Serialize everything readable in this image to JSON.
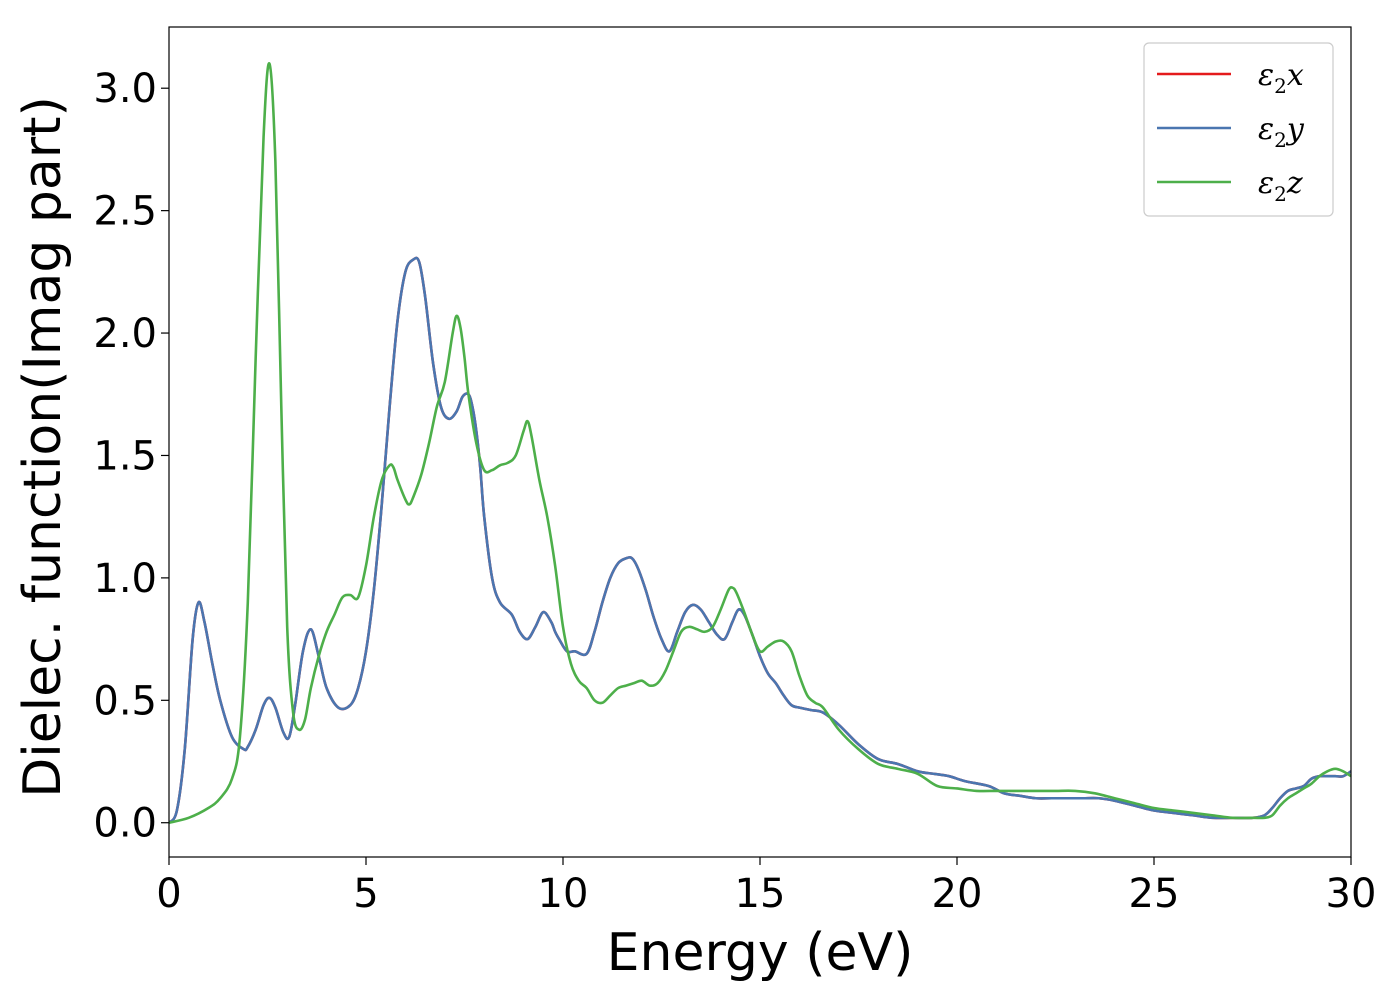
{
  "chart_data": {
    "type": "line",
    "xlabel": "Energy (eV)",
    "ylabel": "Dielec. function(Imag part)",
    "xlim": [
      0,
      30
    ],
    "ylim": [
      -0.14,
      3.25
    ],
    "xticks": [
      0,
      5,
      10,
      15,
      20,
      25,
      30
    ],
    "yticks": [
      0.0,
      0.5,
      1.0,
      1.5,
      2.0,
      2.5,
      3.0
    ],
    "xtick_labels": [
      "0",
      "5",
      "10",
      "15",
      "20",
      "25",
      "30"
    ],
    "ytick_labels": [
      "0.0",
      "0.5",
      "1.0",
      "1.5",
      "2.0",
      "2.5",
      "3.0"
    ],
    "grid": false,
    "legend_position": "top-right",
    "series": [
      {
        "name_symbol": "ε",
        "name_sub": "2",
        "name_var": "x",
        "color": "#e41a1c",
        "x": [
          0,
          0.2,
          0.4,
          0.6,
          0.75,
          0.9,
          1.1,
          1.3,
          1.6,
          1.9,
          2.0,
          2.2,
          2.4,
          2.55,
          2.7,
          2.9,
          3.05,
          3.2,
          3.4,
          3.6,
          3.8,
          4.0,
          4.3,
          4.6,
          4.8,
          5.0,
          5.2,
          5.4,
          5.6,
          5.8,
          6.0,
          6.2,
          6.35,
          6.5,
          6.7,
          6.9,
          7.1,
          7.3,
          7.45,
          7.6,
          7.7,
          7.8,
          7.9,
          8.0,
          8.2,
          8.4,
          8.7,
          8.9,
          9.1,
          9.3,
          9.5,
          9.7,
          9.8,
          9.9,
          10.1,
          10.3,
          10.6,
          10.8,
          11.0,
          11.2,
          11.4,
          11.6,
          11.75,
          11.9,
          12.1,
          12.3,
          12.5,
          12.7,
          12.9,
          13.1,
          13.3,
          13.5,
          13.7,
          13.9,
          14.1,
          14.3,
          14.45,
          14.6,
          14.8,
          15.0,
          15.2,
          15.4,
          15.6,
          15.8,
          16.0,
          16.3,
          16.6,
          17.0,
          17.5,
          18.0,
          18.5,
          19.0,
          19.4,
          19.8,
          20.2,
          20.8,
          21.2,
          21.6,
          22.0,
          22.4,
          22.8,
          23.2,
          23.6,
          24.0,
          24.5,
          25.0,
          25.5,
          26.0,
          26.5,
          27.0,
          27.5,
          27.8,
          28.0,
          28.2,
          28.4,
          28.6,
          28.8,
          29.0,
          29.2,
          29.4,
          29.6,
          29.8,
          30.0
        ],
        "y": [
          0,
          0.05,
          0.3,
          0.75,
          0.9,
          0.82,
          0.65,
          0.5,
          0.35,
          0.3,
          0.31,
          0.38,
          0.48,
          0.51,
          0.47,
          0.37,
          0.35,
          0.48,
          0.7,
          0.79,
          0.68,
          0.55,
          0.47,
          0.48,
          0.55,
          0.7,
          0.95,
          1.3,
          1.7,
          2.05,
          2.25,
          2.3,
          2.29,
          2.15,
          1.88,
          1.7,
          1.65,
          1.68,
          1.74,
          1.75,
          1.7,
          1.6,
          1.45,
          1.25,
          1.0,
          0.9,
          0.85,
          0.78,
          0.75,
          0.8,
          0.86,
          0.82,
          0.78,
          0.75,
          0.7,
          0.7,
          0.69,
          0.78,
          0.9,
          1.0,
          1.06,
          1.08,
          1.08,
          1.04,
          0.95,
          0.84,
          0.75,
          0.7,
          0.78,
          0.86,
          0.89,
          0.87,
          0.82,
          0.77,
          0.75,
          0.82,
          0.87,
          0.85,
          0.77,
          0.68,
          0.61,
          0.57,
          0.52,
          0.48,
          0.47,
          0.46,
          0.45,
          0.4,
          0.32,
          0.26,
          0.24,
          0.21,
          0.2,
          0.19,
          0.17,
          0.15,
          0.12,
          0.11,
          0.1,
          0.1,
          0.1,
          0.1,
          0.1,
          0.09,
          0.07,
          0.05,
          0.04,
          0.03,
          0.02,
          0.02,
          0.02,
          0.03,
          0.06,
          0.1,
          0.13,
          0.14,
          0.15,
          0.18,
          0.19,
          0.19,
          0.19,
          0.19,
          0.21
        ]
      },
      {
        "name_symbol": "ε",
        "name_sub": "2",
        "name_var": "y",
        "color": "#4a76b0",
        "x": [
          0,
          0.2,
          0.4,
          0.6,
          0.75,
          0.9,
          1.1,
          1.3,
          1.6,
          1.9,
          2.0,
          2.2,
          2.4,
          2.55,
          2.7,
          2.9,
          3.05,
          3.2,
          3.4,
          3.6,
          3.8,
          4.0,
          4.3,
          4.6,
          4.8,
          5.0,
          5.2,
          5.4,
          5.6,
          5.8,
          6.0,
          6.2,
          6.35,
          6.5,
          6.7,
          6.9,
          7.1,
          7.3,
          7.45,
          7.6,
          7.7,
          7.8,
          7.9,
          8.0,
          8.2,
          8.4,
          8.7,
          8.9,
          9.1,
          9.3,
          9.5,
          9.7,
          9.8,
          9.9,
          10.1,
          10.3,
          10.6,
          10.8,
          11.0,
          11.2,
          11.4,
          11.6,
          11.75,
          11.9,
          12.1,
          12.3,
          12.5,
          12.7,
          12.9,
          13.1,
          13.3,
          13.5,
          13.7,
          13.9,
          14.1,
          14.3,
          14.45,
          14.6,
          14.8,
          15.0,
          15.2,
          15.4,
          15.6,
          15.8,
          16.0,
          16.3,
          16.6,
          17.0,
          17.5,
          18.0,
          18.5,
          19.0,
          19.4,
          19.8,
          20.2,
          20.8,
          21.2,
          21.6,
          22.0,
          22.4,
          22.8,
          23.2,
          23.6,
          24.0,
          24.5,
          25.0,
          25.5,
          26.0,
          26.5,
          27.0,
          27.5,
          27.8,
          28.0,
          28.2,
          28.4,
          28.6,
          28.8,
          29.0,
          29.2,
          29.4,
          29.6,
          29.8,
          30.0
        ],
        "y": [
          0,
          0.05,
          0.3,
          0.75,
          0.9,
          0.82,
          0.65,
          0.5,
          0.35,
          0.3,
          0.31,
          0.38,
          0.48,
          0.51,
          0.47,
          0.37,
          0.35,
          0.48,
          0.7,
          0.79,
          0.68,
          0.55,
          0.47,
          0.48,
          0.55,
          0.7,
          0.95,
          1.3,
          1.7,
          2.05,
          2.25,
          2.3,
          2.29,
          2.15,
          1.88,
          1.7,
          1.65,
          1.68,
          1.74,
          1.75,
          1.7,
          1.6,
          1.45,
          1.25,
          1.0,
          0.9,
          0.85,
          0.78,
          0.75,
          0.8,
          0.86,
          0.82,
          0.78,
          0.75,
          0.7,
          0.7,
          0.69,
          0.78,
          0.9,
          1.0,
          1.06,
          1.08,
          1.08,
          1.04,
          0.95,
          0.84,
          0.75,
          0.7,
          0.78,
          0.86,
          0.89,
          0.87,
          0.82,
          0.77,
          0.75,
          0.82,
          0.87,
          0.85,
          0.77,
          0.68,
          0.61,
          0.57,
          0.52,
          0.48,
          0.47,
          0.46,
          0.45,
          0.4,
          0.32,
          0.26,
          0.24,
          0.21,
          0.2,
          0.19,
          0.17,
          0.15,
          0.12,
          0.11,
          0.1,
          0.1,
          0.1,
          0.1,
          0.1,
          0.09,
          0.07,
          0.05,
          0.04,
          0.03,
          0.02,
          0.02,
          0.02,
          0.03,
          0.06,
          0.1,
          0.13,
          0.14,
          0.15,
          0.18,
          0.19,
          0.19,
          0.19,
          0.19,
          0.21
        ]
      },
      {
        "name_symbol": "ε",
        "name_sub": "2",
        "name_var": "z",
        "color": "#4daf4a",
        "x": [
          0,
          0.5,
          1.0,
          1.3,
          1.6,
          1.8,
          2.0,
          2.2,
          2.4,
          2.55,
          2.7,
          2.85,
          3.0,
          3.15,
          3.3,
          3.45,
          3.6,
          3.8,
          4.0,
          4.2,
          4.4,
          4.6,
          4.8,
          5.0,
          5.2,
          5.4,
          5.6,
          5.7,
          5.8,
          6.0,
          6.1,
          6.2,
          6.4,
          6.6,
          6.8,
          7.0,
          7.2,
          7.3,
          7.4,
          7.5,
          7.6,
          7.8,
          8.0,
          8.2,
          8.4,
          8.6,
          8.8,
          9.0,
          9.1,
          9.2,
          9.4,
          9.6,
          9.8,
          10.0,
          10.2,
          10.4,
          10.6,
          10.8,
          11.0,
          11.2,
          11.4,
          11.6,
          11.8,
          12.0,
          12.2,
          12.4,
          12.6,
          12.8,
          13.0,
          13.2,
          13.4,
          13.6,
          13.8,
          14.0,
          14.2,
          14.3,
          14.4,
          14.6,
          14.8,
          15.0,
          15.2,
          15.4,
          15.6,
          15.8,
          16.0,
          16.2,
          16.4,
          16.6,
          17.0,
          17.5,
          18.0,
          18.5,
          19.0,
          19.5,
          20.0,
          20.5,
          21.0,
          21.5,
          22.0,
          22.5,
          23.0,
          23.5,
          24.0,
          24.5,
          25.0,
          25.5,
          26.0,
          26.5,
          27.0,
          27.5,
          27.8,
          28.0,
          28.2,
          28.4,
          28.6,
          28.8,
          29.0,
          29.2,
          29.4,
          29.6,
          29.8,
          30.0
        ],
        "y": [
          0,
          0.02,
          0.06,
          0.1,
          0.18,
          0.35,
          0.9,
          1.9,
          2.8,
          3.1,
          2.7,
          1.7,
          0.8,
          0.45,
          0.38,
          0.42,
          0.55,
          0.68,
          0.78,
          0.85,
          0.92,
          0.93,
          0.92,
          1.05,
          1.25,
          1.4,
          1.46,
          1.45,
          1.4,
          1.32,
          1.3,
          1.33,
          1.42,
          1.55,
          1.7,
          1.8,
          2.0,
          2.07,
          2.02,
          1.9,
          1.75,
          1.55,
          1.44,
          1.44,
          1.46,
          1.47,
          1.5,
          1.6,
          1.64,
          1.58,
          1.4,
          1.25,
          1.05,
          0.8,
          0.65,
          0.58,
          0.55,
          0.5,
          0.49,
          0.52,
          0.55,
          0.56,
          0.57,
          0.58,
          0.56,
          0.57,
          0.62,
          0.7,
          0.78,
          0.8,
          0.79,
          0.78,
          0.8,
          0.87,
          0.95,
          0.96,
          0.94,
          0.86,
          0.77,
          0.7,
          0.72,
          0.74,
          0.74,
          0.7,
          0.6,
          0.52,
          0.49,
          0.47,
          0.38,
          0.3,
          0.24,
          0.22,
          0.2,
          0.15,
          0.14,
          0.13,
          0.13,
          0.13,
          0.13,
          0.13,
          0.13,
          0.12,
          0.1,
          0.08,
          0.06,
          0.05,
          0.04,
          0.03,
          0.02,
          0.02,
          0.02,
          0.03,
          0.07,
          0.1,
          0.12,
          0.14,
          0.16,
          0.19,
          0.21,
          0.22,
          0.21,
          0.19
        ]
      }
    ]
  }
}
